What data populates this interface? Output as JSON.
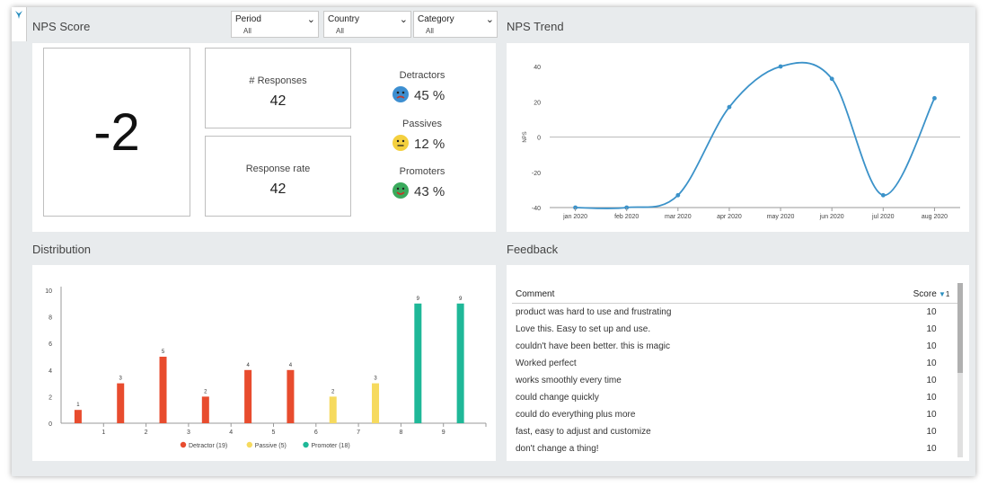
{
  "colors": {
    "detractor": "#e84c2e",
    "passive": "#f6da5e",
    "promoter": "#1fb898",
    "line": "#3b92c9",
    "frame": "#e8ebed"
  },
  "nps_section": {
    "title": "NPS Score",
    "score": "-2"
  },
  "filters": [
    {
      "label": "Period",
      "value": "All"
    },
    {
      "label": "Country",
      "value": "All"
    },
    {
      "label": "Category",
      "value": "All"
    }
  ],
  "kpis": {
    "responses_label": "# Responses",
    "responses_value": "42",
    "rate_label": "Response rate",
    "rate_value": "42"
  },
  "categories": [
    {
      "label": "Detractors",
      "value": "45 %",
      "icon": "angry-face-icon"
    },
    {
      "label": "Passives",
      "value": "12 %",
      "icon": "neutral-face-icon"
    },
    {
      "label": "Promoters",
      "value": "43 %",
      "icon": "happy-face-icon"
    }
  ],
  "trend": {
    "title": "NPS Trend",
    "chart_data": {
      "type": "line",
      "x": [
        "jan 2020",
        "feb 2020",
        "mar 2020",
        "apr 2020",
        "may 2020",
        "jun 2020",
        "jul 2020",
        "aug 2020"
      ],
      "values": [
        -40,
        -40,
        -33,
        17,
        40,
        33,
        -33,
        22
      ],
      "ylabel": "NPS",
      "ylim": [
        -40,
        40
      ],
      "yticks": [
        40,
        20,
        0,
        -20,
        -40
      ]
    }
  },
  "distribution": {
    "title": "Distribution",
    "chart_data": {
      "type": "bar",
      "categories": [
        "0",
        "1",
        "2",
        "3",
        "4",
        "5",
        "6",
        "7",
        "8",
        "9"
      ],
      "x_tick_labels": [
        "",
        "1",
        "2",
        "3",
        "4",
        "5",
        "6",
        "7",
        "8",
        "9"
      ],
      "values": [
        1,
        3,
        5,
        2,
        4,
        4,
        2,
        3,
        9,
        9
      ],
      "groups": [
        "Detractor",
        "Detractor",
        "Detractor",
        "Detractor",
        "Detractor",
        "Detractor",
        "Passive",
        "Passive",
        "Promoter",
        "Promoter"
      ],
      "ylim": [
        0,
        10
      ],
      "yticks": [
        10,
        8,
        6,
        4,
        2,
        0
      ],
      "legend": [
        {
          "name": "Detractor (19)",
          "group": "Detractor"
        },
        {
          "name": "Passive (5)",
          "group": "Passive"
        },
        {
          "name": "Promoter (18)",
          "group": "Promoter"
        }
      ]
    }
  },
  "feedback": {
    "title": "Feedback",
    "col_comment": "Comment",
    "col_score": "Score",
    "sort_marker": "1",
    "rows": [
      {
        "comment": "product was hard to use and frustrating",
        "score": "10"
      },
      {
        "comment": "Love this. Easy to set up and use.",
        "score": "10"
      },
      {
        "comment": "couldn't have been better. this is magic",
        "score": "10"
      },
      {
        "comment": "Worked perfect",
        "score": "10"
      },
      {
        "comment": "works smoothly every time",
        "score": "10"
      },
      {
        "comment": "could change quickly",
        "score": "10"
      },
      {
        "comment": "could do everything plus more",
        "score": "10"
      },
      {
        "comment": "fast, easy to adjust and customize",
        "score": "10"
      },
      {
        "comment": "don't change a thing!",
        "score": "10"
      }
    ]
  }
}
